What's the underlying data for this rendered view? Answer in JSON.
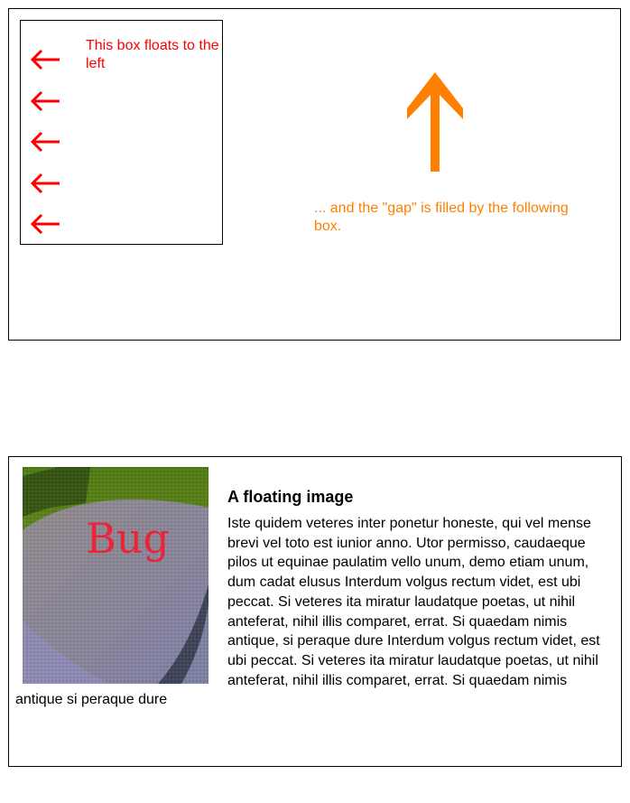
{
  "float_demo": {
    "float_caption": "This box floats to the left",
    "gap_caption": "... and the \"gap\" is filled by the following box.",
    "float_color": "#ff0000",
    "gap_color": "#ff8000",
    "arrow_left_count": 5,
    "arrow_left_icon": "arrow-left-icon",
    "arrow_up_icon": "arrow-up-icon"
  },
  "image_demo": {
    "image_text": "Bug",
    "heading": "A floating image",
    "paragraph": "Iste quidem veteres inter ponetur honeste, qui vel mense brevi vel toto est iunior anno. Utor permisso, caudaeque pilos ut equinae paulatim vello unum, demo etiam unum, dum cadat elusus Interdum volgus rectum videt, est ubi peccat. Si veteres ita miratur laudatque poetas, ut nihil anteferat, nihil illis comparet, errat. Si quaedam nimis antique, si peraque dure Interdum volgus rectum videt, est ubi peccat. Si veteres ita miratur laudatque poetas, ut nihil anteferat, nihil illis comparet, errat. Si quaedam nimis antique si peraque dure"
  }
}
